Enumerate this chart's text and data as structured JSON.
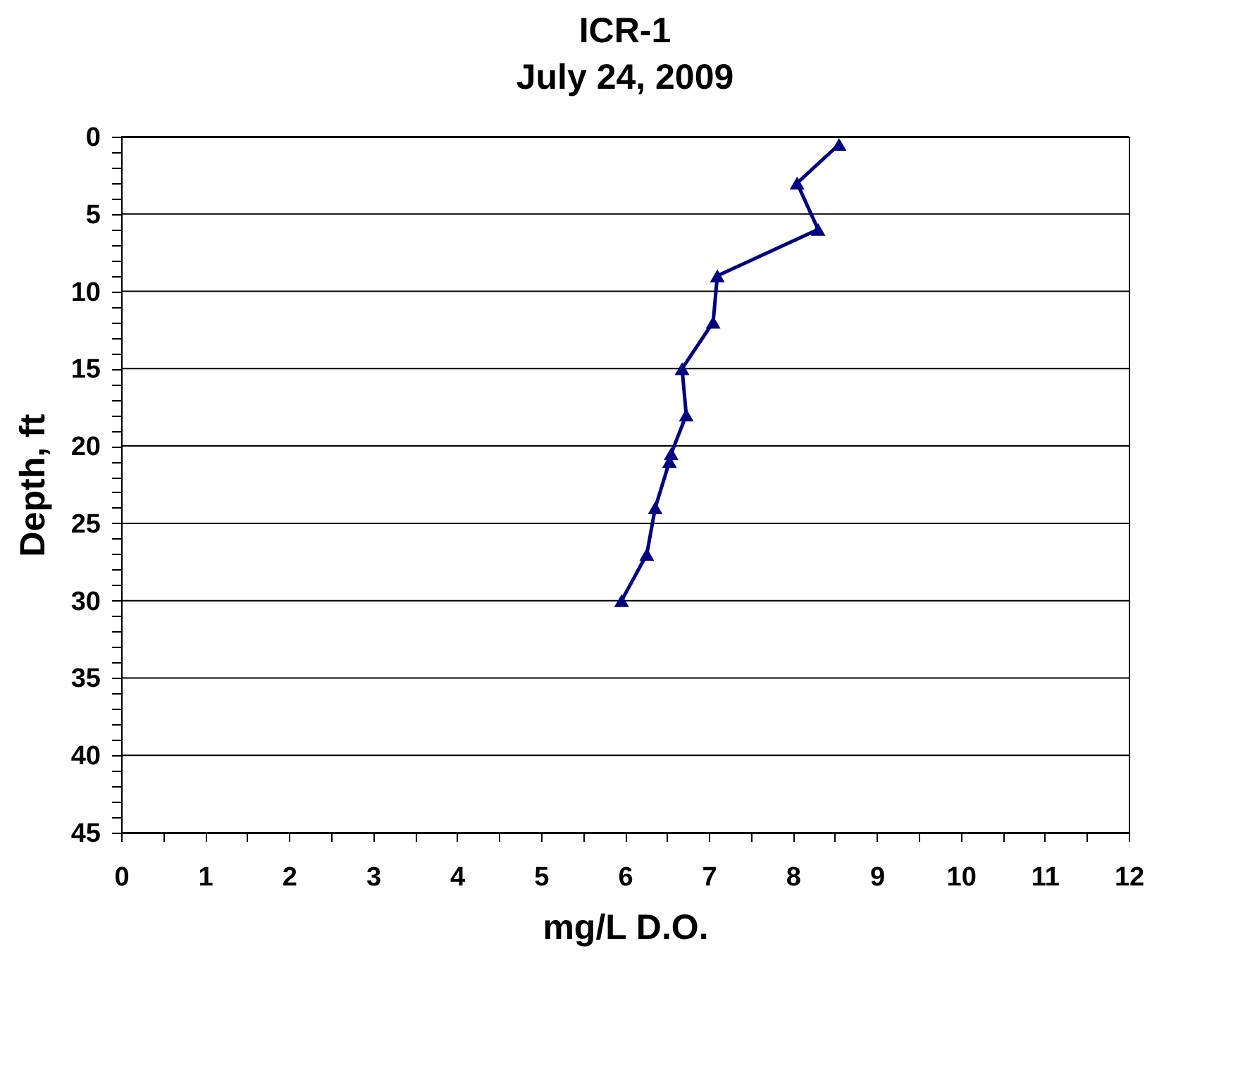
{
  "chart_data": {
    "type": "line",
    "title": "ICR-1",
    "subtitle": "July 24, 2009",
    "xlabel": "mg/L D.O.",
    "ylabel": "Depth, ft",
    "x": [
      8.55,
      8.05,
      8.3,
      7.1,
      7.05,
      6.68,
      6.73,
      6.55,
      6.53,
      6.36,
      6.26,
      5.96
    ],
    "series": [
      {
        "color": "#000080",
        "values": [
          0.5,
          3,
          6,
          9,
          12,
          15,
          18,
          20.5,
          21,
          24,
          27,
          30
        ]
      }
    ],
    "xlim": [
      0,
      12
    ],
    "ylim": [
      45,
      0
    ],
    "xticks": [
      0,
      {
        "value": 0.5,
        "label": null
      },
      1,
      {
        "value": 1.5,
        "label": null
      },
      2,
      {
        "value": 2.5,
        "label": null
      },
      3,
      {
        "value": 3.5,
        "label": null
      },
      4,
      {
        "value": 4.5,
        "label": null
      },
      5,
      {
        "value": 5.5,
        "label": null
      },
      6,
      {
        "value": 6.5,
        "label": null
      },
      7,
      {
        "value": 7.5,
        "label": null
      },
      8,
      {
        "value": 8.5,
        "label": null
      },
      9,
      {
        "value": 9.5,
        "label": null
      },
      10,
      {
        "value": 10.5,
        "label": null
      },
      11,
      {
        "value": 11.5,
        "label": null
      },
      12
    ],
    "yticks": [
      0,
      {
        "value": 1,
        "label": null
      },
      {
        "value": 2,
        "label": null
      },
      {
        "value": 3,
        "label": null
      },
      {
        "value": 4,
        "label": null
      },
      5,
      {
        "value": 6,
        "label": null
      },
      {
        "value": 7,
        "label": null
      },
      {
        "value": 8,
        "label": null
      },
      {
        "value": 9,
        "label": null
      },
      10,
      {
        "value": 11,
        "label": null
      },
      {
        "value": 12,
        "label": null
      },
      {
        "value": 13,
        "label": null
      },
      {
        "value": 14,
        "label": null
      },
      15,
      {
        "value": 16,
        "label": null
      },
      {
        "value": 17,
        "label": null
      },
      {
        "value": 18,
        "label": null
      },
      {
        "value": 19,
        "label": null
      },
      20,
      {
        "value": 21,
        "label": null
      },
      {
        "value": 22,
        "label": null
      },
      {
        "value": 23,
        "label": null
      },
      {
        "value": 24,
        "label": null
      },
      25,
      {
        "value": 26,
        "label": null
      },
      {
        "value": 27,
        "label": null
      },
      {
        "value": 28,
        "label": null
      },
      {
        "value": 29,
        "label": null
      },
      30,
      {
        "value": 31,
        "label": null
      },
      {
        "value": 32,
        "label": null
      },
      {
        "value": 33,
        "label": null
      },
      {
        "value": 34,
        "label": null
      },
      35,
      {
        "value": 36,
        "label": null
      },
      {
        "value": 37,
        "label": null
      },
      {
        "value": 38,
        "label": null
      },
      {
        "value": 39,
        "label": null
      },
      40,
      {
        "value": 41,
        "label": null
      },
      {
        "value": 42,
        "label": null
      },
      {
        "value": 43,
        "label": null
      },
      {
        "value": 44,
        "label": null
      },
      45
    ],
    "grid": "y",
    "marker": "triangle",
    "line_style": "solid"
  }
}
